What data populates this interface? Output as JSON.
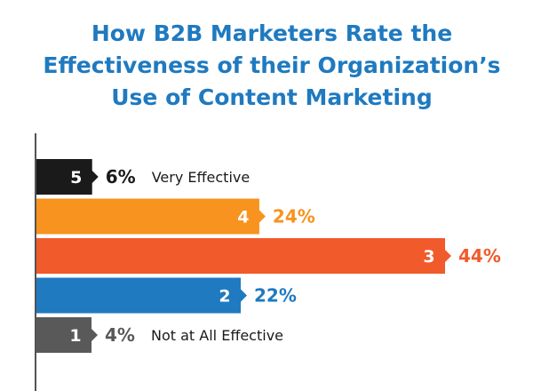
{
  "chart_data": {
    "type": "bar",
    "orientation": "horizontal",
    "title_lines": [
      "How B2B Marketers Rate the",
      "Effectiveness of their Organization’s",
      "Use of Content Marketing"
    ],
    "categories": [
      "5",
      "4",
      "3",
      "2",
      "1"
    ],
    "values": [
      6,
      24,
      44,
      22,
      4
    ],
    "value_labels": [
      "6%",
      "24%",
      "44%",
      "22%",
      "4%"
    ],
    "annotations": [
      "Very Effective",
      "",
      "",
      "",
      "Not at All Effective"
    ],
    "colors": [
      "#1a1a1a",
      "#f7931e",
      "#f15a2b",
      "#1f7ac0",
      "#595959"
    ],
    "label_colors": [
      "#1a1a1a",
      "#f7931e",
      "#f15a2b",
      "#1f7ac0",
      "#595959"
    ],
    "xlim": [
      0,
      44
    ],
    "grid": false,
    "legend": "none"
  }
}
